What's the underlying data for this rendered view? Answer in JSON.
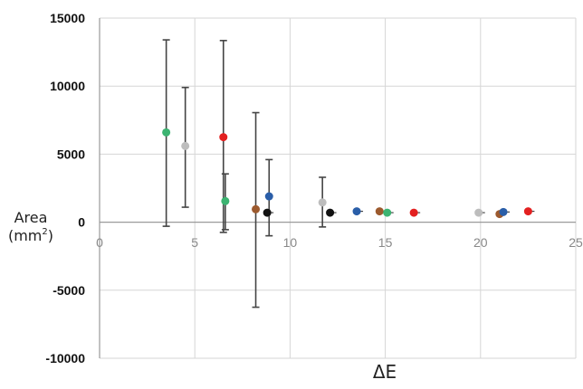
{
  "chart_data": {
    "type": "scatter",
    "title": "",
    "xlabel": "ΔE",
    "ylabel": "Area",
    "ylabel_unit_base": "(mm",
    "ylabel_unit_sup": "2",
    "ylabel_unit_end": ")",
    "xlim": [
      0,
      25
    ],
    "ylim": [
      -10000,
      15000
    ],
    "x_ticks": [
      "0",
      "5",
      "10",
      "15",
      "20",
      "25"
    ],
    "y_ticks": [
      "15000",
      "10000",
      "5000",
      "0",
      "-5000",
      "-10000"
    ],
    "grid": true,
    "colors": {
      "green": "#3cb371",
      "gray": "#bdbdbd",
      "red": "#e32020",
      "brown": "#9c5a2e",
      "black": "#111111",
      "blue": "#2a5ea8",
      "errorbar": "#444444",
      "grid": "#d6d6d6"
    },
    "points": [
      {
        "x": 3.5,
        "y": 6600,
        "color": "green",
        "err_low": 6900,
        "err_high": 6800
      },
      {
        "x": 4.5,
        "y": 5600,
        "color": "gray",
        "err_low": 4500,
        "err_high": 4300
      },
      {
        "x": 6.5,
        "y": 6250,
        "color": "red",
        "err_low": 7000,
        "err_high": 7100
      },
      {
        "x": 6.6,
        "y": 1550,
        "color": "green",
        "err_low": 2100,
        "err_high": 2000
      },
      {
        "x": 8.2,
        "y": 950,
        "color": "brown",
        "err_low": 7200,
        "err_high": 7100
      },
      {
        "x": 8.8,
        "y": 700,
        "color": "black",
        "err_low": 0,
        "err_high": 0
      },
      {
        "x": 8.9,
        "y": 1900,
        "color": "blue",
        "err_low": 2900,
        "err_high": 2700
      },
      {
        "x": 11.7,
        "y": 1450,
        "color": "gray",
        "err_low": 1800,
        "err_high": 1850
      },
      {
        "x": 12.1,
        "y": 700,
        "color": "black",
        "err_low": 0,
        "err_high": 0
      },
      {
        "x": 13.5,
        "y": 800,
        "color": "blue",
        "err_low": 0,
        "err_high": 0
      },
      {
        "x": 14.7,
        "y": 800,
        "color": "brown",
        "err_low": 0,
        "err_high": 0
      },
      {
        "x": 15.1,
        "y": 700,
        "color": "green",
        "err_low": 0,
        "err_high": 0
      },
      {
        "x": 16.5,
        "y": 700,
        "color": "red",
        "err_low": 0,
        "err_high": 0
      },
      {
        "x": 19.9,
        "y": 700,
        "color": "gray",
        "err_low": 0,
        "err_high": 0
      },
      {
        "x": 21.0,
        "y": 600,
        "color": "brown",
        "err_low": 0,
        "err_high": 0
      },
      {
        "x": 21.2,
        "y": 750,
        "color": "blue",
        "err_low": 0,
        "err_high": 0
      },
      {
        "x": 22.5,
        "y": 800,
        "color": "red",
        "err_low": 0,
        "err_high": 0
      }
    ]
  }
}
